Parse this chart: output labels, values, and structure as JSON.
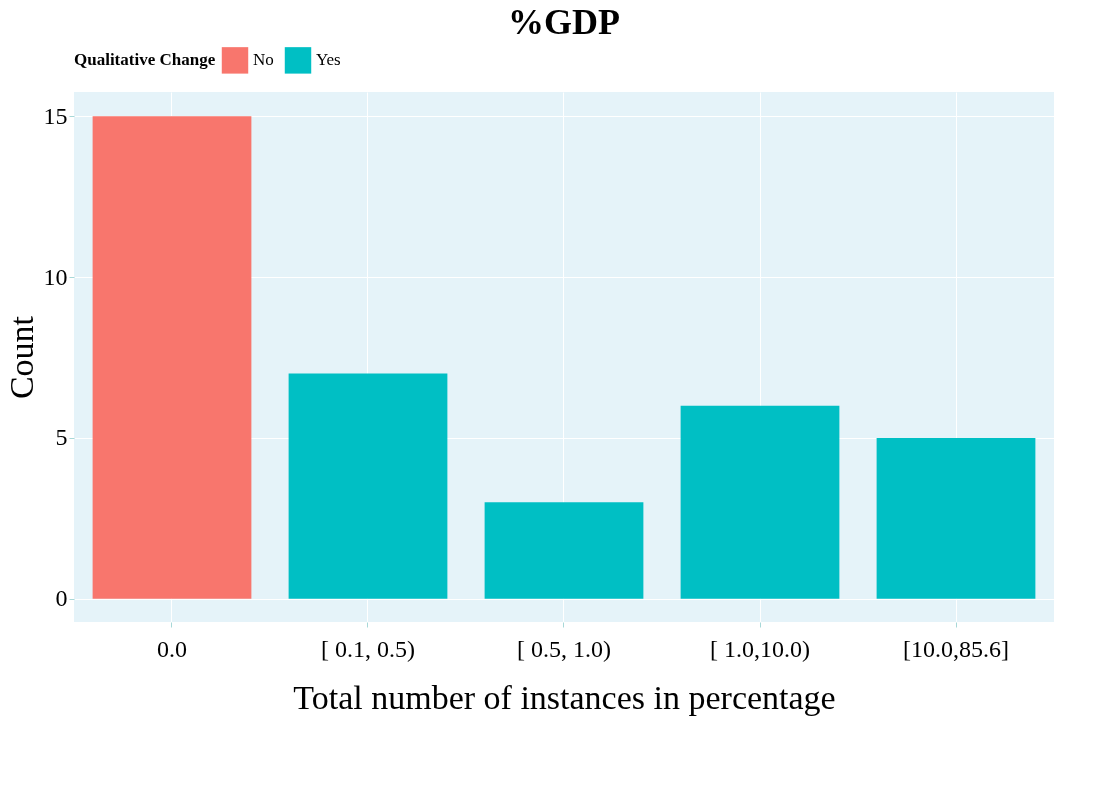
{
  "chart_data": {
    "type": "bar",
    "title": "%GDP",
    "xlabel": "Total number of instances in percentage",
    "ylabel": "Count",
    "legend_title": "Qualitative Change",
    "categories": [
      "0.0",
      "[ 0.1, 0.5)",
      "[ 0.5, 1.0)",
      "[ 1.0,10.0)",
      "[10.0,85.6]"
    ],
    "series": [
      {
        "name": "No",
        "color": "#f8766d",
        "values": [
          15,
          null,
          null,
          null,
          null
        ]
      },
      {
        "name": "Yes",
        "color": "#00bfc4",
        "values": [
          null,
          7,
          3,
          6,
          5
        ]
      }
    ],
    "ylim": [
      -0.72,
      15.75
    ],
    "yticks": [
      0,
      5,
      10,
      15
    ],
    "grid": true,
    "legend": "top"
  }
}
